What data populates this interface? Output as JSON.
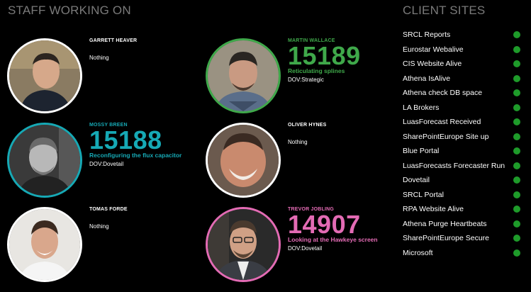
{
  "headings": {
    "staff": "STAFF WORKING ON",
    "sites": "CLIENT SITES"
  },
  "colors": {
    "background": "#000000",
    "heading_grey": "#7a7a7a",
    "green": "#3fa84a",
    "teal": "#16a9b5",
    "pink": "#e36bb4",
    "site_ok": "#1e9b2a"
  },
  "staff": [
    {
      "name": "GARRETT HEAVER",
      "status": "Nothing",
      "ring": "#ffffff"
    },
    {
      "name": "MARTIN WALLACE",
      "ticket": "15189",
      "task": "Reticulating splines",
      "project": "DOV:Strategic",
      "ring": "#3fa84a"
    },
    {
      "name": "MOSSY BREEN",
      "ticket": "15188",
      "task": "Reconfiguring the flux capacitor",
      "project": "DOV:Dovetail",
      "ring": "#16a9b5"
    },
    {
      "name": "OLIVER HYNES",
      "status": "Nothing",
      "ring": "#ffffff"
    },
    {
      "name": "TOMAS FORDE",
      "status": "Nothing",
      "ring": "#ffffff"
    },
    {
      "name": "TREVOR JOBLING",
      "ticket": "14907",
      "task": "Looking at the Hawkeye screen",
      "project": "DOV:Dovetail",
      "ring": "#e36bb4"
    }
  ],
  "sites": [
    "SRCL Reports",
    "Eurostar Webalive",
    "CIS Website Alive",
    "Athena IsAlive",
    "Athena check DB space",
    "LA Brokers",
    "LuasForecast Received",
    "SharePointEurope Site up",
    "Blue Portal",
    "LuasForecasts Forecaster Run",
    "Dovetail",
    "SRCL Portal",
    "RPA Website Alive",
    "Athena Purge Heartbeats",
    "SharePointEurope Secure",
    "Microsoft"
  ]
}
